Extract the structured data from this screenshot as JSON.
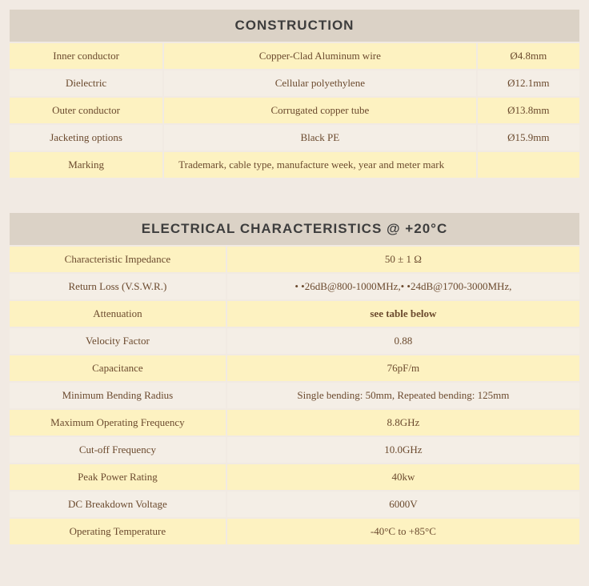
{
  "colors": {
    "page_bg": "#f1eae3",
    "header_bg": "#dbd2c6",
    "row_odd_bg": "#fdf2c1",
    "row_even_bg": "#f4eee6",
    "text": "#6b4a2e",
    "header_text": "#3d3d3d"
  },
  "construction": {
    "title": "CONSTRUCTION",
    "rows": [
      {
        "label": "Inner conductor",
        "desc": "Copper-Clad Aluminum wire",
        "dim": "Ø4.8mm"
      },
      {
        "label": "Dielectric",
        "desc": "Cellular polyethylene",
        "dim": "Ø12.1mm"
      },
      {
        "label": "Outer conductor",
        "desc": "Corrugated copper tube",
        "dim": "Ø13.8mm"
      },
      {
        "label": "Jacketing options",
        "desc": "Black PE",
        "dim": "Ø15.9mm"
      },
      {
        "label": "Marking",
        "desc": "Trademark, cable type, manufacture week, year and meter mark",
        "dim": ""
      }
    ]
  },
  "electrical": {
    "title": "ELECTRICAL CHARACTERISTICS @ +20°C",
    "rows": [
      {
        "label": "Characteristic Impedance",
        "value": "50 ± 1 Ω"
      },
      {
        "label": "Return Loss (V.S.W.R.)",
        "value": "•  •26dB@800-1000MHz,•  •24dB@1700-3000MHz,"
      },
      {
        "label": "Attenuation",
        "value": "see table below",
        "bold": true
      },
      {
        "label": "Velocity Factor",
        "value": "0.88"
      },
      {
        "label": "Capacitance",
        "value": "76pF/m"
      },
      {
        "label": "Minimum Bending Radius",
        "value": "Single bending: 50mm, Repeated bending: 125mm"
      },
      {
        "label": "Maximum Operating Frequency",
        "value": "8.8GHz"
      },
      {
        "label": "Cut-off Frequency",
        "value": "10.0GHz"
      },
      {
        "label": "Peak Power Rating",
        "value": "40kw"
      },
      {
        "label": "DC Breakdown Voltage",
        "value": "6000V"
      },
      {
        "label": "Operating Temperature",
        "value": "-40°C to +85°C"
      }
    ]
  }
}
